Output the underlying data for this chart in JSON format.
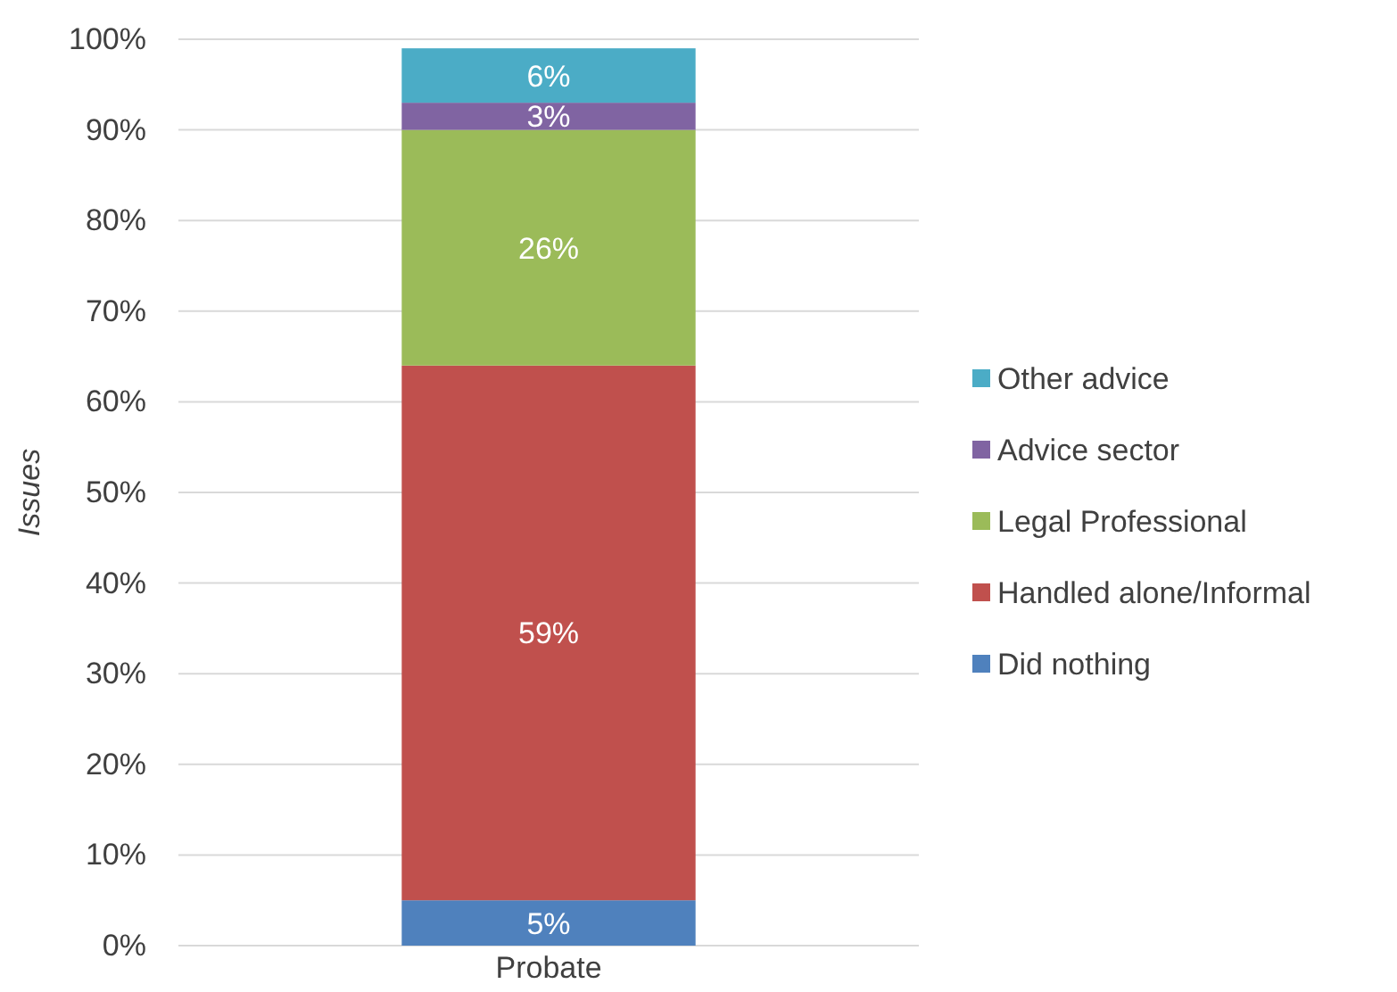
{
  "chart_data": {
    "type": "bar",
    "stacked": true,
    "categories": [
      "Probate"
    ],
    "ylabel": "Issues",
    "ylim": [
      0,
      100
    ],
    "yticks": [
      {
        "value": 0,
        "label": "0%"
      },
      {
        "value": 10,
        "label": "10%"
      },
      {
        "value": 20,
        "label": "20%"
      },
      {
        "value": 30,
        "label": "30%"
      },
      {
        "value": 40,
        "label": "40%"
      },
      {
        "value": 50,
        "label": "50%"
      },
      {
        "value": 60,
        "label": "60%"
      },
      {
        "value": 70,
        "label": "70%"
      },
      {
        "value": 80,
        "label": "80%"
      },
      {
        "value": 90,
        "label": "90%"
      },
      {
        "value": 100,
        "label": "100%"
      }
    ],
    "grid": "y",
    "legend": "right",
    "series": [
      {
        "name": "Did nothing",
        "color": "#4f81bd",
        "values": [
          5
        ],
        "value_labels": [
          "5%"
        ]
      },
      {
        "name": "Handled alone/Informal",
        "color": "#c0504d",
        "values": [
          59
        ],
        "value_labels": [
          "59%"
        ]
      },
      {
        "name": "Legal Professional",
        "color": "#9bbb59",
        "values": [
          26
        ],
        "value_labels": [
          "26%"
        ]
      },
      {
        "name": "Advice sector",
        "color": "#8064a2",
        "values": [
          3
        ],
        "value_labels": [
          "3%"
        ]
      },
      {
        "name": "Other advice",
        "color": "#4bacc6",
        "values": [
          6
        ],
        "value_labels": [
          "6%"
        ]
      }
    ]
  }
}
